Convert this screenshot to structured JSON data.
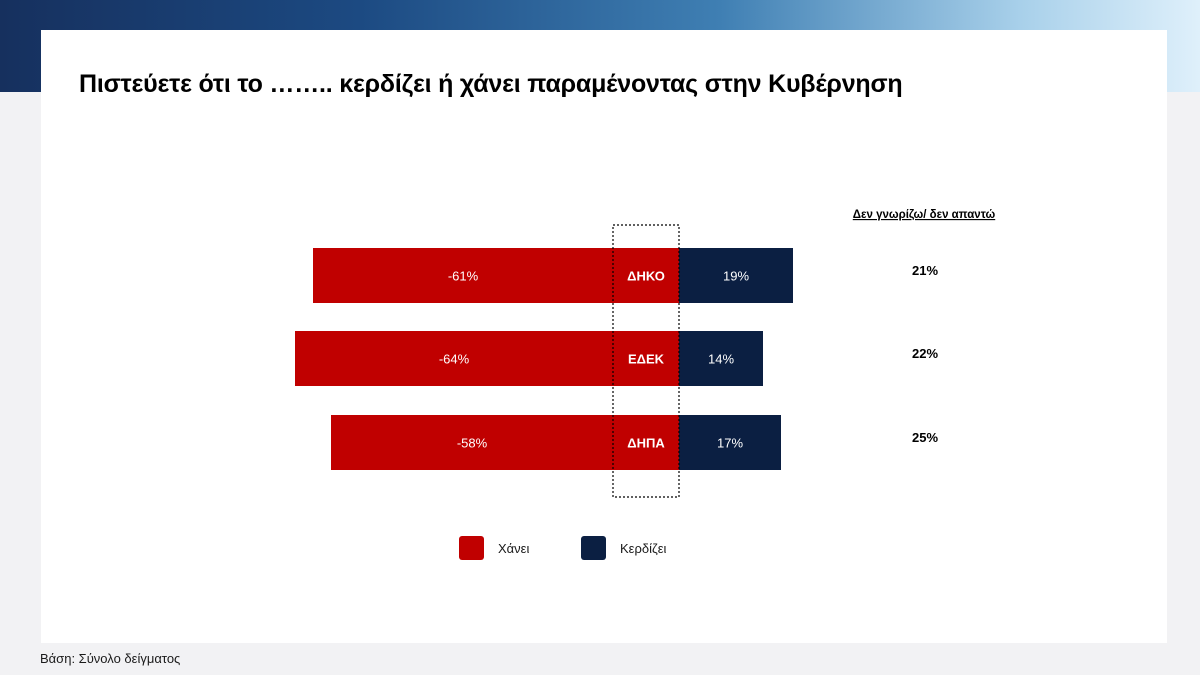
{
  "title": "Πιστεύετε ότι το …….. κερδίζει ή χάνει παραμένοντας στην Κυβέρνηση",
  "footnote": "Βάση: Σύνολο δείγματος",
  "colors": {
    "loses": "#c00000",
    "wins": "#0b1f42"
  },
  "chart_data": {
    "type": "bar",
    "orientation": "horizontal-diverging",
    "title": "Πιστεύετε ότι το …….. κερδίζει ή χάνει παραμένοντας στην Κυβέρνηση",
    "categories": [
      "ΔΗΚΟ",
      "ΕΔΕΚ",
      "ΔΗΠΑ"
    ],
    "series": [
      {
        "name": "Χάνει",
        "values": [
          -61,
          -64,
          -58
        ],
        "labels": [
          "-61%",
          "-64%",
          "-58%"
        ]
      },
      {
        "name": "Κερδίζει",
        "values": [
          19,
          14,
          17
        ],
        "labels": [
          "19%",
          "14%",
          "17%"
        ]
      }
    ],
    "dont_know": {
      "header": "Δεν γνωρίζω/ δεν απαντώ",
      "values": [
        21,
        22,
        25
      ],
      "labels": [
        "21%",
        "22%",
        "25%"
      ]
    },
    "legend": [
      {
        "label": "Χάνει",
        "color": "#c00000"
      },
      {
        "label": "Κερδίζει",
        "color": "#0b1f42"
      }
    ],
    "legend_position": "bottom",
    "xlabel": "",
    "ylabel": "",
    "grid": false
  }
}
